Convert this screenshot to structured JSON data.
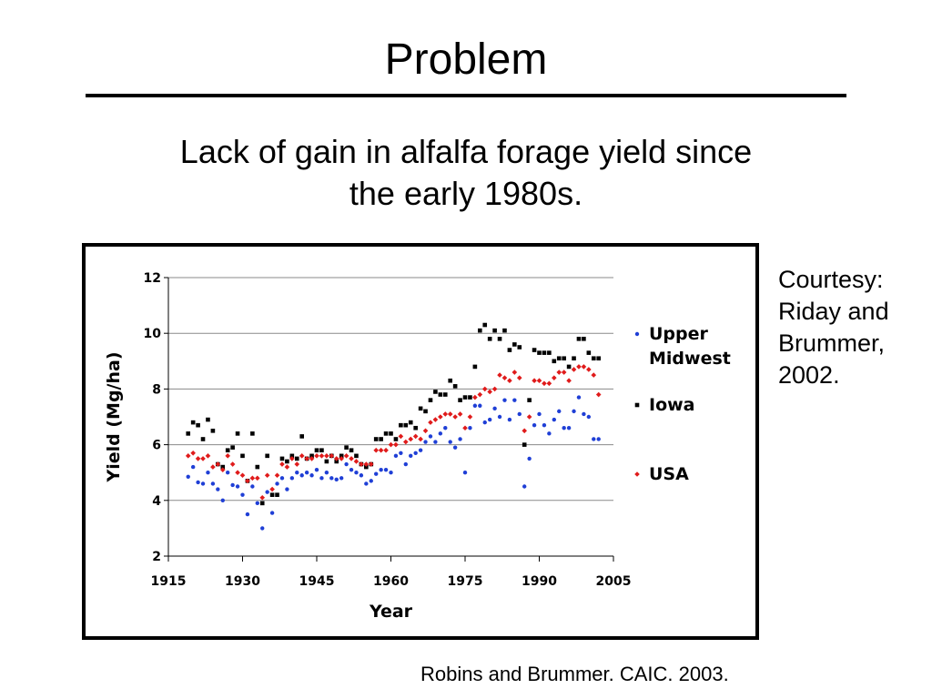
{
  "slide": {
    "title": "Problem",
    "subtitle_line1": "Lack of gain in alfalfa forage yield since",
    "subtitle_line2": "the early 1980s.",
    "courtesy_lines": [
      "Courtesy:",
      "Riday and",
      "Brummer,",
      "2002."
    ],
    "citation": "Robins and Brummer. CAIC. 2003."
  },
  "chart_data": {
    "type": "scatter",
    "title": "",
    "xlabel": "Year",
    "ylabel": "Yield (Mg/ha)",
    "xlim": [
      1915,
      2005
    ],
    "ylim": [
      2,
      12
    ],
    "xticks": [
      "1915",
      "1930",
      "1945",
      "1960",
      "1975",
      "1990",
      "2005"
    ],
    "yticks": [
      "2",
      "4",
      "6",
      "8",
      "10",
      "12"
    ],
    "grid": "horizontal",
    "legend_position": "right",
    "series": [
      {
        "name": "Upper Midwest",
        "legend_lines": [
          "Upper",
          "Midwest"
        ],
        "color": "#1f3fd6",
        "marker": "circle",
        "x": [
          1919,
          1920,
          1921,
          1922,
          1923,
          1924,
          1925,
          1926,
          1927,
          1928,
          1929,
          1930,
          1931,
          1932,
          1933,
          1934,
          1935,
          1936,
          1937,
          1938,
          1939,
          1940,
          1941,
          1942,
          1943,
          1944,
          1945,
          1946,
          1947,
          1948,
          1949,
          1950,
          1951,
          1952,
          1953,
          1954,
          1955,
          1956,
          1957,
          1958,
          1959,
          1960,
          1961,
          1962,
          1963,
          1964,
          1965,
          1966,
          1967,
          1968,
          1969,
          1970,
          1971,
          1972,
          1973,
          1974,
          1975,
          1976,
          1977,
          1978,
          1979,
          1980,
          1981,
          1982,
          1983,
          1984,
          1985,
          1986,
          1987,
          1988,
          1989,
          1990,
          1991,
          1992,
          1993,
          1994,
          1995,
          1996,
          1997,
          1998,
          1999,
          2000,
          2001,
          2002
        ],
        "y": [
          4.85,
          5.2,
          4.65,
          4.6,
          5.0,
          4.6,
          4.4,
          4.0,
          5.0,
          4.55,
          4.5,
          4.2,
          3.5,
          4.5,
          3.9,
          3.0,
          4.3,
          3.55,
          4.6,
          4.8,
          4.4,
          4.8,
          5.0,
          4.9,
          5.0,
          4.9,
          5.1,
          4.8,
          5.0,
          4.8,
          4.75,
          4.8,
          5.3,
          5.1,
          5.0,
          4.9,
          4.6,
          4.7,
          4.95,
          5.1,
          5.1,
          5.0,
          5.6,
          5.7,
          5.3,
          5.6,
          5.7,
          5.8,
          6.1,
          6.3,
          6.1,
          6.4,
          6.6,
          6.1,
          5.9,
          6.2,
          5.0,
          6.6,
          7.4,
          7.4,
          6.8,
          6.9,
          7.3,
          7.0,
          7.6,
          6.9,
          7.6,
          7.1,
          4.5,
          5.5,
          6.7,
          7.1,
          6.7,
          6.4,
          6.9,
          7.2,
          6.6,
          6.6,
          7.2,
          7.7,
          7.1,
          7.0,
          6.2,
          6.2
        ]
      },
      {
        "name": "Iowa",
        "legend_lines": [
          "Iowa"
        ],
        "color": "#000000",
        "marker": "square",
        "x": [
          1919,
          1920,
          1921,
          1922,
          1923,
          1924,
          1925,
          1926,
          1927,
          1928,
          1929,
          1930,
          1931,
          1932,
          1933,
          1934,
          1935,
          1936,
          1937,
          1938,
          1939,
          1940,
          1941,
          1942,
          1943,
          1944,
          1945,
          1946,
          1947,
          1948,
          1949,
          1950,
          1951,
          1952,
          1953,
          1954,
          1955,
          1956,
          1957,
          1958,
          1959,
          1960,
          1961,
          1962,
          1963,
          1964,
          1965,
          1966,
          1967,
          1968,
          1969,
          1970,
          1971,
          1972,
          1973,
          1974,
          1975,
          1976,
          1977,
          1978,
          1979,
          1980,
          1981,
          1982,
          1983,
          1984,
          1985,
          1986,
          1987,
          1988,
          1989,
          1990,
          1991,
          1992,
          1993,
          1994,
          1995,
          1996,
          1997,
          1998,
          1999,
          2000,
          2001,
          2002
        ],
        "y": [
          6.4,
          6.8,
          6.7,
          6.2,
          6.9,
          6.5,
          5.3,
          5.2,
          5.8,
          5.9,
          6.4,
          5.6,
          4.7,
          6.4,
          5.2,
          3.9,
          5.6,
          4.2,
          4.2,
          5.5,
          5.4,
          5.6,
          5.5,
          6.3,
          5.5,
          5.6,
          5.8,
          5.8,
          5.4,
          5.6,
          5.4,
          5.6,
          5.9,
          5.8,
          5.6,
          5.3,
          5.2,
          5.3,
          6.2,
          6.2,
          6.4,
          6.4,
          6.2,
          6.7,
          6.7,
          6.8,
          6.6,
          7.3,
          7.2,
          7.6,
          7.9,
          7.8,
          7.8,
          8.3,
          8.1,
          7.6,
          7.7,
          7.7,
          8.8,
          10.1,
          10.3,
          9.8,
          10.1,
          9.8,
          10.1,
          9.4,
          9.6,
          9.5,
          6.0,
          7.6,
          9.4,
          9.3,
          9.3,
          9.3,
          9.0,
          9.1,
          9.1,
          8.8,
          9.1,
          9.8,
          9.8,
          9.3,
          9.1,
          9.1
        ]
      },
      {
        "name": "USA",
        "legend_lines": [
          "USA"
        ],
        "color": "#e01b1b",
        "marker": "diamond",
        "x": [
          1919,
          1920,
          1921,
          1922,
          1923,
          1924,
          1925,
          1926,
          1927,
          1928,
          1929,
          1930,
          1931,
          1932,
          1933,
          1934,
          1935,
          1936,
          1937,
          1938,
          1939,
          1940,
          1941,
          1942,
          1943,
          1944,
          1945,
          1946,
          1947,
          1948,
          1949,
          1950,
          1951,
          1952,
          1953,
          1954,
          1955,
          1956,
          1957,
          1958,
          1959,
          1960,
          1961,
          1962,
          1963,
          1964,
          1965,
          1966,
          1967,
          1968,
          1969,
          1970,
          1971,
          1972,
          1973,
          1974,
          1975,
          1976,
          1977,
          1978,
          1979,
          1980,
          1981,
          1982,
          1983,
          1984,
          1985,
          1986,
          1987,
          1988,
          1989,
          1990,
          1991,
          1992,
          1993,
          1994,
          1995,
          1996,
          1997,
          1998,
          1999,
          2000,
          2001,
          2002
        ],
        "y": [
          5.6,
          5.7,
          5.5,
          5.5,
          5.6,
          5.2,
          5.3,
          5.1,
          5.6,
          5.3,
          5.0,
          4.9,
          4.7,
          4.8,
          4.8,
          4.1,
          4.9,
          4.4,
          4.9,
          5.3,
          5.2,
          5.5,
          5.3,
          5.6,
          5.5,
          5.5,
          5.6,
          5.6,
          5.6,
          5.6,
          5.5,
          5.5,
          5.6,
          5.5,
          5.4,
          5.3,
          5.3,
          5.3,
          5.8,
          5.8,
          5.8,
          6.0,
          6.0,
          6.3,
          6.1,
          6.2,
          6.3,
          6.2,
          6.5,
          6.8,
          6.9,
          7.0,
          7.1,
          7.1,
          7.0,
          7.1,
          6.6,
          7.0,
          7.7,
          7.8,
          8.0,
          7.9,
          8.0,
          8.5,
          8.4,
          8.3,
          8.6,
          8.4,
          6.5,
          7.0,
          8.3,
          8.3,
          8.2,
          8.2,
          8.4,
          8.6,
          8.6,
          8.3,
          8.7,
          8.8,
          8.8,
          8.7,
          8.5,
          7.8
        ]
      }
    ]
  }
}
